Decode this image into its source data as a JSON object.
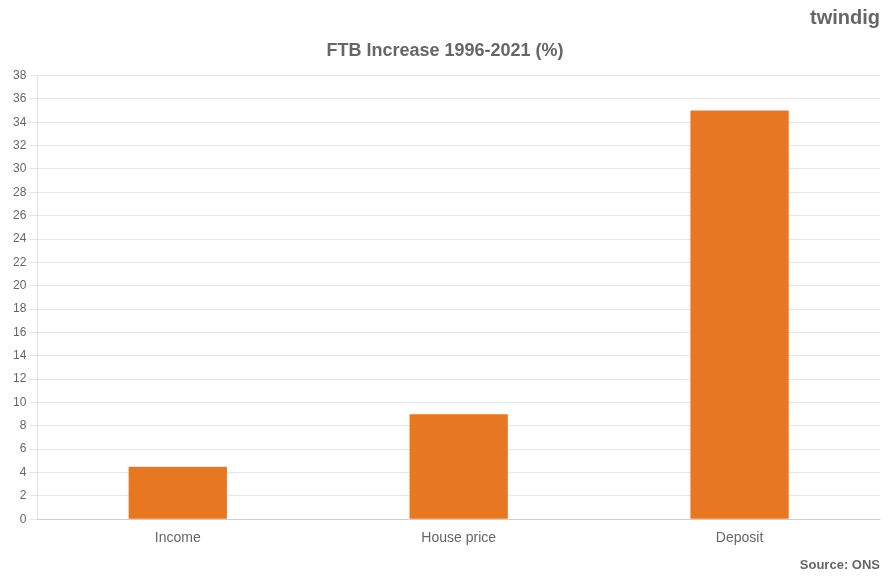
{
  "chart_data": {
    "type": "bar",
    "title": "FTB Increase 1996-2021 (%)",
    "categories": [
      "Income",
      "House price",
      "Deposit"
    ],
    "values": [
      4.5,
      9.0,
      35.0
    ],
    "color": "#E87722",
    "ylim": [
      0,
      38
    ],
    "yticks": [
      0,
      2,
      4,
      6,
      8,
      10,
      12,
      14,
      16,
      18,
      20,
      22,
      24,
      26,
      28,
      30,
      32,
      34,
      36,
      38
    ],
    "grid": true,
    "annotations": [
      "Source: ONS",
      "twindig"
    ]
  }
}
